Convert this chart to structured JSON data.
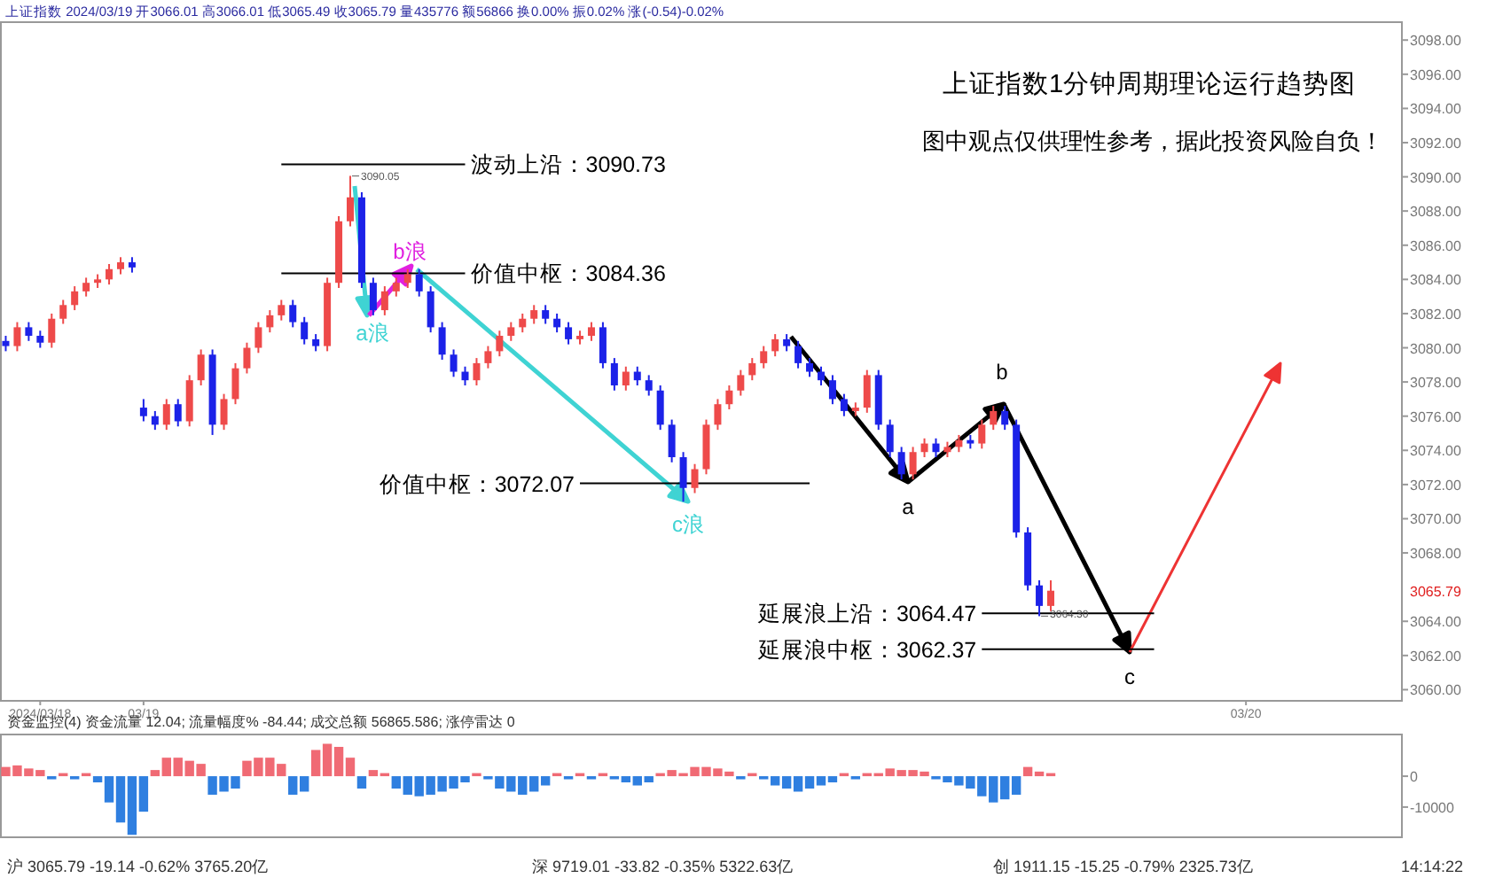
{
  "chart_data": [
    {
      "type": "candlestick",
      "title": "上证指数1分钟周期理论运行趋势图",
      "subtitle": "图中观点仅供理性参考，据此投资风险自负！",
      "categories": [
        null,
        null,
        null,
        "2024/03/18",
        null,
        null,
        null,
        null,
        null,
        null,
        null,
        null,
        "03/19",
        null,
        null,
        null,
        null,
        null,
        null,
        null,
        null,
        null,
        null,
        null,
        null,
        null,
        null,
        null,
        null,
        null,
        null,
        null,
        null,
        null,
        null,
        null,
        null,
        null,
        null,
        null,
        null,
        null,
        null,
        null,
        null,
        null,
        null,
        null,
        null,
        null,
        null,
        null,
        null,
        null,
        null,
        null,
        null,
        null,
        null,
        null,
        null,
        null,
        null,
        null,
        null,
        null,
        null,
        null,
        null,
        null,
        null,
        null,
        null,
        null,
        null,
        null,
        null,
        null,
        null,
        null,
        null,
        null,
        null,
        null,
        null,
        null,
        null,
        null,
        null,
        null,
        null,
        null,
        null,
        null,
        null,
        null,
        null,
        null,
        null,
        null,
        null,
        null,
        null,
        null,
        null,
        null,
        null,
        null,
        "03/20",
        null,
        null,
        null,
        null,
        null,
        null,
        null,
        null,
        null,
        null,
        null,
        null,
        null
      ],
      "ylim": [
        3059.4,
        3099.1
      ],
      "yticks": [
        {
          "value": 3060,
          "label": "3060.00"
        },
        {
          "value": 3062,
          "label": "3062.00"
        },
        {
          "value": 3064,
          "label": "3064.00"
        },
        {
          "value": 3068,
          "label": "3068.00"
        },
        {
          "value": 3070,
          "label": "3070.00"
        },
        {
          "value": 3072,
          "label": "3072.00"
        },
        {
          "value": 3074,
          "label": "3074.00"
        },
        {
          "value": 3076,
          "label": "3076.00"
        },
        {
          "value": 3078,
          "label": "3078.00"
        },
        {
          "value": 3080,
          "label": "3080.00"
        },
        {
          "value": 3082,
          "label": "3082.00"
        },
        {
          "value": 3084,
          "label": "3084.00"
        },
        {
          "value": 3086,
          "label": "3086.00"
        },
        {
          "value": 3088,
          "label": "3088.00"
        },
        {
          "value": 3090,
          "label": "3090.00"
        },
        {
          "value": 3092,
          "label": "3092.00"
        },
        {
          "value": 3094,
          "label": "3094.00"
        },
        {
          "value": 3096,
          "label": "3096.00"
        },
        {
          "value": 3098,
          "label": "3098.00"
        }
      ],
      "grid": false,
      "series": [
        {
          "type": "candlestick",
          "ohlc": [
            [
              3080.4,
              3080.7,
              3079.8,
              3080.1
            ],
            [
              3080.1,
              3081.5,
              3079.8,
              3081.2
            ],
            [
              3081.2,
              3081.5,
              3080.4,
              3080.7
            ],
            [
              3080.7,
              3081.0,
              3080.0,
              3080.3
            ],
            [
              3080.3,
              3082.0,
              3080.0,
              3081.7
            ],
            [
              3081.7,
              3082.8,
              3081.4,
              3082.5
            ],
            [
              3082.5,
              3083.6,
              3082.2,
              3083.3
            ],
            [
              3083.3,
              3084.1,
              3083.0,
              3083.8
            ],
            [
              3083.8,
              3084.3,
              3083.5,
              3084.0
            ],
            [
              3084.0,
              3084.9,
              3083.7,
              3084.6
            ],
            [
              3084.6,
              3085.3,
              3084.3,
              3085.0
            ],
            [
              3085.0,
              3085.3,
              3084.4,
              3084.7
            ],
            [
              3076.5,
              3077.0,
              3075.7,
              3076.0
            ],
            [
              3076.0,
              3076.3,
              3075.2,
              3075.5
            ],
            [
              3075.5,
              3077.0,
              3075.2,
              3076.7
            ],
            [
              3076.7,
              3077.0,
              3075.4,
              3075.7
            ],
            [
              3075.7,
              3078.4,
              3075.4,
              3078.1
            ],
            [
              3078.1,
              3079.9,
              3077.8,
              3079.6
            ],
            [
              3079.6,
              3079.9,
              3074.9,
              3075.5
            ],
            [
              3075.5,
              3077.3,
              3075.2,
              3077.0
            ],
            [
              3077.0,
              3079.1,
              3076.7,
              3078.8
            ],
            [
              3078.8,
              3080.3,
              3078.5,
              3080.0
            ],
            [
              3080.0,
              3081.5,
              3079.7,
              3081.2
            ],
            [
              3081.2,
              3082.2,
              3080.9,
              3081.9
            ],
            [
              3081.9,
              3082.8,
              3081.6,
              3082.5
            ],
            [
              3082.5,
              3082.8,
              3081.2,
              3081.5
            ],
            [
              3081.5,
              3081.8,
              3080.2,
              3080.5
            ],
            [
              3080.5,
              3080.8,
              3079.8,
              3080.1
            ],
            [
              3080.1,
              3084.1,
              3079.8,
              3083.8
            ],
            [
              3083.8,
              3087.7,
              3083.5,
              3087.4
            ],
            [
              3087.4,
              3090.05,
              3087.1,
              3088.8
            ],
            [
              3088.8,
              3089.1,
              3083.5,
              3083.8
            ],
            [
              3083.8,
              3084.1,
              3081.9,
              3082.2
            ],
            [
              3082.2,
              3083.6,
              3081.9,
              3083.3
            ],
            [
              3083.3,
              3084.1,
              3083.0,
              3083.8
            ],
            [
              3083.8,
              3084.6,
              3083.5,
              3084.3
            ],
            [
              3084.3,
              3084.6,
              3083.0,
              3083.3
            ],
            [
              3083.3,
              3083.6,
              3080.9,
              3081.2
            ],
            [
              3081.2,
              3081.5,
              3079.3,
              3079.6
            ],
            [
              3079.6,
              3079.9,
              3078.3,
              3078.6
            ],
            [
              3078.6,
              3078.9,
              3077.8,
              3078.1
            ],
            [
              3078.1,
              3079.4,
              3077.8,
              3079.1
            ],
            [
              3079.1,
              3080.1,
              3078.8,
              3079.8
            ],
            [
              3079.8,
              3081.0,
              3079.5,
              3080.7
            ],
            [
              3080.7,
              3081.5,
              3080.4,
              3081.2
            ],
            [
              3081.2,
              3082.0,
              3080.9,
              3081.7
            ],
            [
              3081.7,
              3082.5,
              3081.4,
              3082.2
            ],
            [
              3082.2,
              3082.5,
              3081.4,
              3081.7
            ],
            [
              3081.7,
              3082.0,
              3080.9,
              3081.2
            ],
            [
              3081.2,
              3081.5,
              3080.2,
              3080.5
            ],
            [
              3080.5,
              3081.0,
              3080.2,
              3080.7
            ],
            [
              3080.7,
              3081.5,
              3080.4,
              3081.2
            ],
            [
              3081.2,
              3081.5,
              3078.8,
              3079.1
            ],
            [
              3079.1,
              3079.4,
              3077.5,
              3077.8
            ],
            [
              3077.8,
              3078.9,
              3077.5,
              3078.6
            ],
            [
              3078.6,
              3078.9,
              3077.8,
              3078.1
            ],
            [
              3078.1,
              3078.4,
              3077.2,
              3077.5
            ],
            [
              3077.5,
              3077.8,
              3075.2,
              3075.5
            ],
            [
              3075.5,
              3075.8,
              3073.3,
              3073.6
            ],
            [
              3073.6,
              3073.9,
              3071.0,
              3071.8
            ],
            [
              3071.8,
              3073.2,
              3071.5,
              3072.9
            ],
            [
              3072.9,
              3075.8,
              3072.6,
              3075.5
            ],
            [
              3075.5,
              3077.0,
              3075.2,
              3076.7
            ],
            [
              3076.7,
              3077.8,
              3076.4,
              3077.5
            ],
            [
              3077.5,
              3078.7,
              3077.2,
              3078.4
            ],
            [
              3078.4,
              3079.4,
              3078.1,
              3079.1
            ],
            [
              3079.1,
              3080.1,
              3078.8,
              3079.8
            ],
            [
              3079.8,
              3080.8,
              3079.5,
              3080.5
            ],
            [
              3080.5,
              3080.8,
              3079.8,
              3080.1
            ],
            [
              3080.1,
              3080.4,
              3078.8,
              3079.1
            ],
            [
              3079.1,
              3079.4,
              3078.3,
              3078.6
            ],
            [
              3078.6,
              3078.9,
              3077.8,
              3078.1
            ],
            [
              3078.1,
              3078.4,
              3076.7,
              3077.0
            ],
            [
              3077.0,
              3077.3,
              3076.0,
              3076.3
            ],
            [
              3076.3,
              3076.8,
              3076.0,
              3076.5
            ],
            [
              3076.5,
              3078.7,
              3076.2,
              3078.4
            ],
            [
              3078.4,
              3078.7,
              3075.2,
              3075.5
            ],
            [
              3075.5,
              3075.8,
              3073.6,
              3073.9
            ],
            [
              3073.9,
              3074.2,
              3072.3,
              3072.6
            ],
            [
              3072.6,
              3074.2,
              3072.3,
              3073.9
            ],
            [
              3073.9,
              3074.7,
              3073.6,
              3074.4
            ],
            [
              3074.4,
              3074.7,
              3073.6,
              3073.9
            ],
            [
              3073.9,
              3074.5,
              3073.6,
              3074.2
            ],
            [
              3074.2,
              3074.9,
              3073.9,
              3074.6
            ],
            [
              3074.6,
              3074.9,
              3074.1,
              3074.4
            ],
            [
              3074.4,
              3075.8,
              3074.1,
              3075.5
            ],
            [
              3075.5,
              3076.6,
              3075.2,
              3076.3
            ],
            [
              3076.3,
              3076.6,
              3075.2,
              3075.5
            ],
            [
              3075.5,
              3075.8,
              3068.9,
              3069.2
            ],
            [
              3069.2,
              3069.5,
              3065.8,
              3066.1
            ],
            [
              3066.1,
              3066.4,
              3064.3,
              3064.9
            ],
            [
              3064.9,
              3066.4,
              3064.6,
              3065.79
            ],
            null,
            null,
            null,
            null,
            null,
            null,
            null,
            null,
            null,
            null,
            null,
            null,
            null,
            null,
            null,
            null,
            null,
            null,
            null,
            null,
            null,
            null,
            null,
            null,
            null,
            null,
            null,
            null,
            null,
            null
          ],
          "colors": [
            "#1c22e8",
            "#ee4a4a",
            "#1c22e8",
            "#1c22e8",
            "#ee4a4a",
            "#ee4a4a",
            "#ee4a4a",
            "#ee4a4a",
            "#ee4a4a",
            "#ee4a4a",
            "#ee4a4a",
            "#1c22e8",
            "#1c22e8",
            "#1c22e8",
            "#ee4a4a",
            "#1c22e8",
            "#ee4a4a",
            "#ee4a4a",
            "#1c22e8",
            "#ee4a4a",
            "#ee4a4a",
            "#ee4a4a",
            "#ee4a4a",
            "#ee4a4a",
            "#ee4a4a",
            "#1c22e8",
            "#1c22e8",
            "#1c22e8",
            "#ee4a4a",
            "#ee4a4a",
            "#ee4a4a",
            "#1c22e8",
            "#1c22e8",
            "#ee4a4a",
            "#ee4a4a",
            "#ee4a4a",
            "#1c22e8",
            "#1c22e8",
            "#1c22e8",
            "#1c22e8",
            "#1c22e8",
            "#ee4a4a",
            "#ee4a4a",
            "#ee4a4a",
            "#ee4a4a",
            "#ee4a4a",
            "#ee4a4a",
            "#1c22e8",
            "#1c22e8",
            "#1c22e8",
            "#ee4a4a",
            "#ee4a4a",
            "#1c22e8",
            "#1c22e8",
            "#ee4a4a",
            "#1c22e8",
            "#1c22e8",
            "#1c22e8",
            "#1c22e8",
            "#1c22e8",
            "#ee4a4a",
            "#ee4a4a",
            "#ee4a4a",
            "#ee4a4a",
            "#ee4a4a",
            "#ee4a4a",
            "#ee4a4a",
            "#ee4a4a",
            "#1c22e8",
            "#1c22e8",
            "#1c22e8",
            "#1c22e8",
            "#1c22e8",
            "#1c22e8",
            "#ee4a4a",
            "#ee4a4a",
            "#1c22e8",
            "#1c22e8",
            "#1c22e8",
            "#ee4a4a",
            "#ee4a4a",
            "#1c22e8",
            "#ee4a4a",
            "#ee4a4a",
            "#1c22e8",
            "#ee4a4a",
            "#ee4a4a",
            "#1c22e8",
            "#1c22e8",
            "#1c22e8",
            "#1c22e8",
            "#ee4a4a",
            null,
            null,
            null,
            null,
            null,
            null,
            null,
            null,
            null,
            null,
            null,
            null,
            null,
            null,
            null,
            null,
            null,
            null,
            null,
            null,
            null,
            null,
            null,
            null,
            null,
            null,
            null,
            null,
            null,
            null
          ],
          "value_labels": [
            null,
            null,
            null,
            null,
            null,
            null,
            null,
            null,
            null,
            null,
            null,
            null,
            null,
            null,
            null,
            null,
            null,
            null,
            null,
            null,
            null,
            null,
            null,
            null,
            null,
            null,
            null,
            null,
            null,
            null,
            "3090.05",
            null,
            null,
            null,
            null,
            null,
            null,
            null,
            null,
            null,
            null,
            null,
            null,
            null,
            null,
            null,
            null,
            null,
            null,
            null,
            null,
            null,
            null,
            null,
            null,
            null,
            null,
            null,
            null,
            null,
            null,
            null,
            null,
            null,
            null,
            null,
            null,
            null,
            null,
            null,
            null,
            null,
            null,
            null,
            null,
            null,
            null,
            null,
            null,
            null,
            null,
            null,
            null,
            null,
            null,
            null,
            null,
            null,
            null,
            null,
            "3064.30",
            null,
            null,
            null,
            null,
            null,
            null,
            null,
            null,
            null,
            null,
            null,
            null,
            null,
            null,
            null,
            null,
            null,
            null,
            null,
            null,
            null,
            null,
            null,
            null,
            null,
            null,
            null,
            null,
            null,
            null,
            null
          ]
        },
        {
          "type": "line",
          "name": "波动上沿：3090.73",
          "color": "#000000",
          "values": [
            null,
            null,
            null,
            null,
            null,
            null,
            null,
            null,
            null,
            null,
            null,
            null,
            null,
            null,
            null,
            null,
            null,
            null,
            null,
            null,
            null,
            null,
            null,
            null,
            3090.73,
            null,
            null,
            null,
            null,
            null,
            null,
            null,
            null,
            null,
            null,
            null,
            null,
            null,
            null,
            null,
            3090.73,
            null,
            null,
            null,
            null,
            null,
            null,
            null,
            null,
            null,
            null,
            null,
            null,
            null,
            null,
            null,
            null,
            null,
            null,
            null,
            null,
            null,
            null,
            null,
            null,
            null,
            null,
            null,
            null,
            null,
            null,
            null,
            null,
            null,
            null,
            null,
            null,
            null,
            null,
            null,
            null,
            null,
            null,
            null,
            null,
            null,
            null,
            null,
            null,
            null,
            null,
            null,
            null,
            null,
            null,
            null,
            null,
            null,
            null,
            null,
            null,
            null,
            null,
            null,
            null,
            null,
            null,
            null,
            null,
            null,
            null,
            null,
            null,
            null,
            null,
            null,
            null,
            null,
            null,
            null,
            null,
            null
          ]
        },
        {
          "type": "line",
          "name": "价值中枢：3084.36",
          "color": "#000000",
          "values": [
            null,
            null,
            null,
            null,
            null,
            null,
            null,
            null,
            null,
            null,
            null,
            null,
            null,
            null,
            null,
            null,
            null,
            null,
            null,
            null,
            null,
            null,
            null,
            null,
            3084.36,
            null,
            null,
            null,
            null,
            null,
            null,
            null,
            null,
            null,
            null,
            null,
            null,
            null,
            null,
            null,
            3084.36,
            null,
            null,
            null,
            null,
            null,
            null,
            null,
            null,
            null,
            null,
            null,
            null,
            null,
            null,
            null,
            null,
            null,
            null,
            null,
            null,
            null,
            null,
            null,
            null,
            null,
            null,
            null,
            null,
            null,
            null,
            null,
            null,
            null,
            null,
            null,
            null,
            null,
            null,
            null,
            null,
            null,
            null,
            null,
            null,
            null,
            null,
            null,
            null,
            null,
            null,
            null,
            null,
            null,
            null,
            null,
            null,
            null,
            null,
            null,
            null,
            null,
            null,
            null,
            null,
            null,
            null,
            null,
            null,
            null,
            null,
            null,
            null,
            null,
            null,
            null,
            null,
            null,
            null,
            null,
            null,
            null
          ]
        },
        {
          "type": "line",
          "name": "价值中枢：3072.07",
          "color": "#000000",
          "values": [
            null,
            null,
            null,
            null,
            null,
            null,
            null,
            null,
            null,
            null,
            null,
            null,
            null,
            null,
            null,
            null,
            null,
            null,
            null,
            null,
            null,
            null,
            null,
            null,
            null,
            null,
            null,
            null,
            null,
            null,
            null,
            null,
            null,
            null,
            null,
            null,
            null,
            null,
            null,
            null,
            null,
            null,
            null,
            null,
            null,
            null,
            null,
            null,
            null,
            null,
            3072.07,
            null,
            null,
            null,
            null,
            null,
            null,
            null,
            null,
            null,
            null,
            null,
            null,
            null,
            null,
            null,
            null,
            null,
            null,
            null,
            3072.07,
            null,
            null,
            null,
            null,
            null,
            null,
            null,
            null,
            null,
            null,
            null,
            null,
            null,
            null,
            null,
            null,
            null,
            null,
            null,
            null,
            null,
            null,
            null,
            null,
            null,
            null,
            null,
            null,
            null,
            null,
            null,
            null,
            null,
            null,
            null,
            null,
            null,
            null,
            null,
            null,
            null,
            null,
            null,
            null,
            null,
            null,
            null,
            null,
            null,
            null,
            null
          ]
        },
        {
          "type": "line",
          "name": "延展浪上沿：3064.47",
          "color": "#000000",
          "values": [
            null,
            null,
            null,
            null,
            null,
            null,
            null,
            null,
            null,
            null,
            null,
            null,
            null,
            null,
            null,
            null,
            null,
            null,
            null,
            null,
            null,
            null,
            null,
            null,
            null,
            null,
            null,
            null,
            null,
            null,
            null,
            null,
            null,
            null,
            null,
            null,
            null,
            null,
            null,
            null,
            null,
            null,
            null,
            null,
            null,
            null,
            null,
            null,
            null,
            null,
            null,
            null,
            null,
            null,
            null,
            null,
            null,
            null,
            null,
            null,
            null,
            null,
            null,
            null,
            null,
            null,
            null,
            null,
            null,
            null,
            null,
            null,
            null,
            null,
            null,
            null,
            null,
            null,
            null,
            null,
            null,
            null,
            null,
            null,
            null,
            3064.47,
            null,
            null,
            null,
            null,
            null,
            null,
            null,
            null,
            null,
            null,
            null,
            null,
            null,
            null,
            3064.47,
            null,
            null,
            null,
            null,
            null,
            null,
            null,
            null,
            null,
            null,
            null,
            null,
            null,
            null,
            null,
            null,
            null,
            null,
            null,
            null,
            null
          ]
        },
        {
          "type": "line",
          "name": "延展浪中枢：3062.37",
          "color": "#000000",
          "values": [
            null,
            null,
            null,
            null,
            null,
            null,
            null,
            null,
            null,
            null,
            null,
            null,
            null,
            null,
            null,
            null,
            null,
            null,
            null,
            null,
            null,
            null,
            null,
            null,
            null,
            null,
            null,
            null,
            null,
            null,
            null,
            null,
            null,
            null,
            null,
            null,
            null,
            null,
            null,
            null,
            null,
            null,
            null,
            null,
            null,
            null,
            null,
            null,
            null,
            null,
            null,
            null,
            null,
            null,
            null,
            null,
            null,
            null,
            null,
            null,
            null,
            null,
            null,
            null,
            null,
            null,
            null,
            null,
            null,
            null,
            null,
            null,
            null,
            null,
            null,
            null,
            null,
            null,
            null,
            null,
            null,
            null,
            null,
            null,
            null,
            3062.37,
            null,
            null,
            null,
            null,
            null,
            null,
            null,
            null,
            null,
            null,
            null,
            null,
            null,
            null,
            3062.37,
            null,
            null,
            null,
            null,
            null,
            null,
            null,
            null,
            null,
            null,
            null,
            null,
            null,
            null,
            null,
            null,
            null,
            null,
            null,
            null,
            null
          ]
        }
      ],
      "annotations": [
        "上证指数 2024/03/19 开3066.01 高3066.01 低3065.49 收3065.79 量435776 额56866 换0.00% 振0.02% 涨(-0.54)-0.02%",
        "3065.79",
        "a浪",
        "b浪",
        "c浪",
        "a",
        "b",
        "c"
      ]
    },
    {
      "type": "bar",
      "title": "资金监控(4)  资金流量 12.04;  流量幅度% -84.44;  成交总额 56865.586;  涨停雷达 0",
      "categories": [
        null,
        null,
        null,
        null,
        null,
        null,
        null,
        null,
        null,
        null,
        null,
        null,
        null,
        null,
        null,
        null,
        null,
        null,
        null,
        null,
        null,
        null,
        null,
        null,
        null,
        null,
        null,
        null,
        null,
        null,
        null,
        null,
        null,
        null,
        null,
        null,
        null,
        null,
        null,
        null,
        null,
        null,
        null,
        null,
        null,
        null,
        null,
        null,
        null,
        null,
        null,
        null,
        null,
        null,
        null,
        null,
        null,
        null,
        null,
        null,
        null,
        null,
        null,
        null,
        null,
        null,
        null,
        null,
        null,
        null,
        null,
        null,
        null,
        null,
        null,
        null,
        null,
        null,
        null,
        null,
        null,
        null,
        null,
        null,
        null,
        null,
        null,
        null,
        null,
        null,
        null,
        null,
        null,
        null,
        null,
        null,
        null,
        null,
        null,
        null,
        null,
        null,
        null,
        null,
        null,
        null,
        null,
        null,
        null,
        null,
        null,
        null,
        null,
        null,
        null,
        null,
        null,
        null,
        null,
        null,
        null,
        null
      ],
      "ylim": [
        -19500,
        13800
      ],
      "yticks": [
        0,
        -10000
      ],
      "tick_labels": "y",
      "grid": false,
      "series": [
        {
          "color": "#f06a74",
          "values": [
            3000,
            3500,
            2500,
            2000,
            null,
            1000,
            null,
            1000,
            null,
            null,
            null,
            null,
            null,
            2000,
            6000,
            6000,
            5000,
            4000,
            null,
            null,
            null,
            5000,
            6000,
            6000,
            4000,
            null,
            null,
            8500,
            10500,
            9500,
            6000,
            null,
            2000,
            1000,
            null,
            null,
            null,
            null,
            null,
            null,
            null,
            1000,
            null,
            null,
            null,
            null,
            null,
            null,
            1000,
            null,
            1000,
            null,
            1000,
            null,
            null,
            null,
            null,
            1000,
            2000,
            1000,
            3000,
            3000,
            2500,
            1500,
            null,
            1000,
            null,
            null,
            null,
            null,
            null,
            null,
            null,
            1000,
            null,
            1000,
            1000,
            2500,
            2000,
            2000,
            1500,
            null,
            null,
            null,
            null,
            null,
            null,
            null,
            null,
            3000,
            1500,
            1000,
            null,
            null,
            null,
            null,
            null,
            null,
            null,
            null,
            null,
            null,
            null,
            null,
            null,
            null,
            null,
            null,
            null,
            null,
            null,
            null,
            null,
            null,
            null,
            null,
            null,
            null,
            null,
            null,
            null,
            null
          ]
        },
        {
          "color": "#2f7fe0",
          "values": [
            null,
            null,
            null,
            null,
            -1000,
            null,
            -1000,
            null,
            -2000,
            -8500,
            -15000,
            -19000,
            -11500,
            null,
            null,
            null,
            null,
            null,
            -6000,
            -5000,
            -4000,
            null,
            null,
            null,
            null,
            -6000,
            -5000,
            null,
            null,
            null,
            null,
            -4000,
            null,
            null,
            -4000,
            -6000,
            -6500,
            -6000,
            -5000,
            -4000,
            -2000,
            null,
            -1000,
            -4000,
            -5000,
            -6000,
            -5000,
            -3000,
            null,
            -1000,
            null,
            -1000,
            null,
            -1000,
            -2000,
            -3000,
            -2000,
            null,
            null,
            null,
            null,
            null,
            null,
            null,
            -1000,
            null,
            -1000,
            -3000,
            -4000,
            -5000,
            -4000,
            -3000,
            -2000,
            null,
            -1000,
            null,
            null,
            null,
            null,
            null,
            null,
            -1000,
            -2000,
            -3000,
            -4000,
            -6500,
            -8500,
            -7500,
            -6000,
            null,
            null,
            null,
            null,
            null,
            null,
            null,
            null,
            null,
            null,
            null,
            null,
            null,
            null,
            null,
            null,
            null,
            null,
            null,
            null,
            null,
            null,
            null,
            null,
            null,
            null,
            null,
            null,
            null,
            null,
            null,
            null,
            null
          ]
        }
      ],
      "annotations": [
        "沪 3065.79 -19.14 -0.62% 3765.20亿",
        "深 9719.01 -33.82 -0.35% 5322.63亿",
        "创 1911.15 -15.25 -0.79% 2325.73亿",
        "14:14:22"
      ]
    }
  ]
}
